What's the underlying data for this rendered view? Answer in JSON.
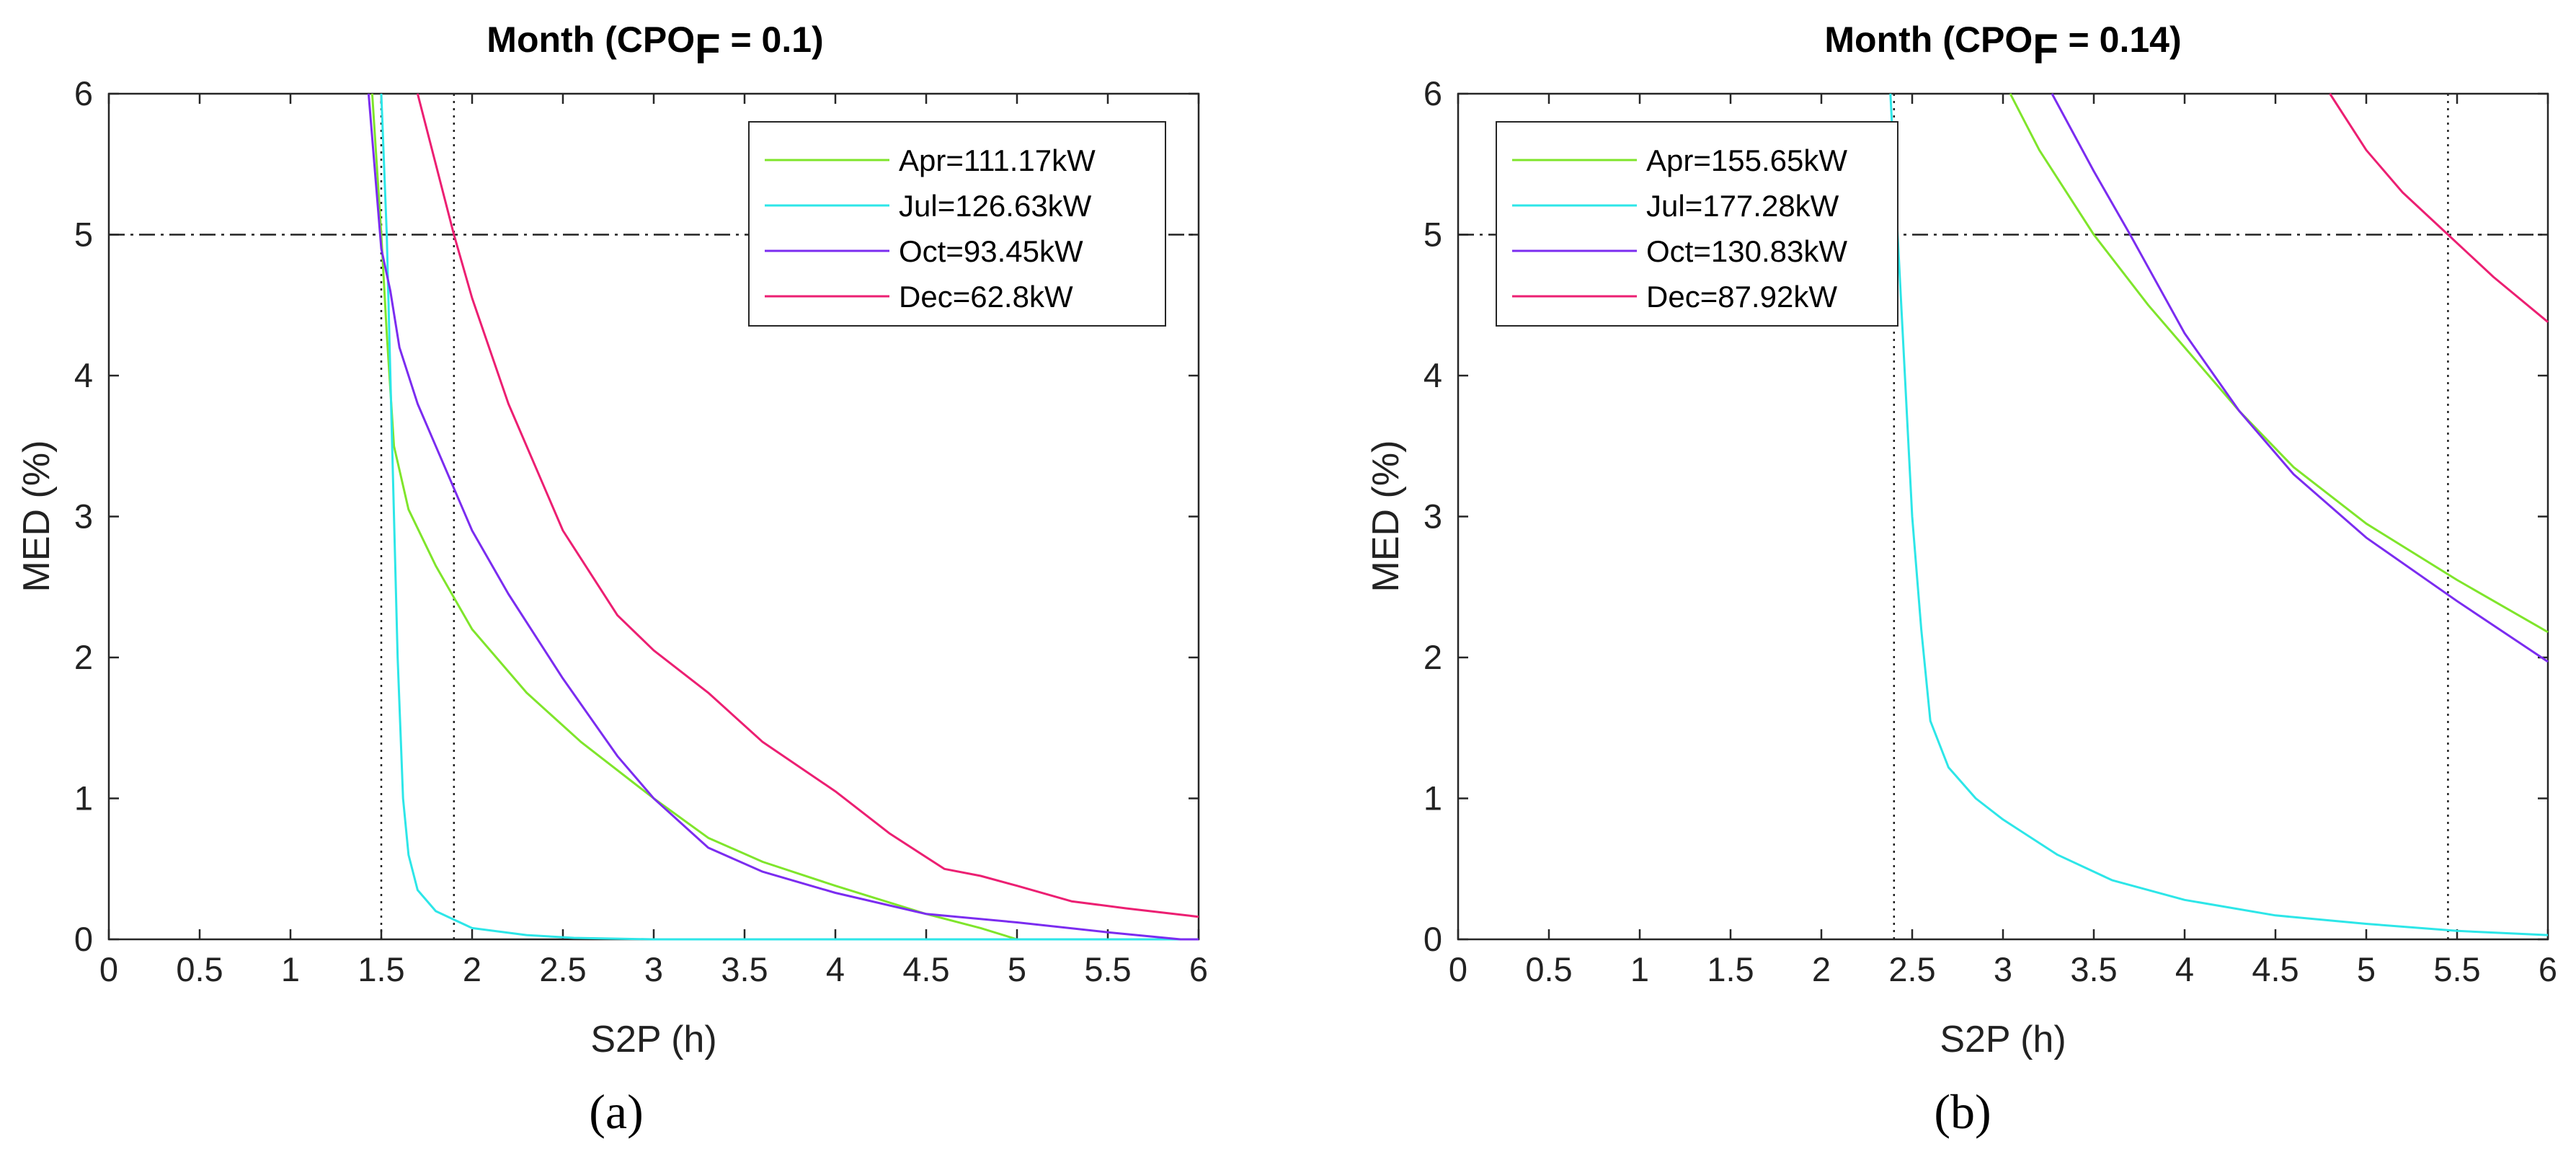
{
  "chart_data": [
    {
      "type": "line",
      "title_main": "Month (CPO",
      "title_sub": "F",
      "title_tail": " = 0.1)",
      "xlabel": "S2P (h)",
      "ylabel": "MED (%)",
      "xlim": [
        0,
        6
      ],
      "ylim": [
        0,
        6
      ],
      "xticks": [
        "0",
        "0.5",
        "1",
        "1.5",
        "2",
        "2.5",
        "3",
        "3.5",
        "4",
        "4.5",
        "5",
        "5.5",
        "6"
      ],
      "yticks": [
        "0",
        "1",
        "2",
        "3",
        "4",
        "5",
        "6"
      ],
      "hline": 5,
      "vlines": [
        1.5,
        1.9
      ],
      "caption": "(a)",
      "legend_position": "top-right",
      "series": [
        {
          "name": "Apr=111.17kW",
          "color": "#7fe52b",
          "x": [
            1.45,
            1.5,
            1.53,
            1.57,
            1.65,
            1.8,
            2.0,
            2.3,
            2.6,
            3.0,
            3.3,
            3.6,
            4.0,
            4.5,
            4.8,
            5.0
          ],
          "y": [
            6.0,
            5.0,
            4.3,
            3.5,
            3.05,
            2.65,
            2.2,
            1.75,
            1.4,
            1.0,
            0.72,
            0.55,
            0.38,
            0.18,
            0.08,
            0.0
          ]
        },
        {
          "name": "Jul=126.63kW",
          "color": "#2de6e8",
          "x": [
            1.5,
            1.53,
            1.56,
            1.59,
            1.62,
            1.65,
            1.7,
            1.8,
            2.0,
            2.3,
            2.56,
            3.0,
            4.0,
            5.0,
            6.0
          ],
          "y": [
            6.0,
            5.0,
            3.5,
            2.0,
            1.0,
            0.6,
            0.35,
            0.2,
            0.08,
            0.03,
            0.01,
            0.0,
            0.0,
            0.0,
            0.0
          ]
        },
        {
          "name": "Oct=93.45kW",
          "color": "#7b2cf0",
          "x": [
            1.43,
            1.5,
            1.55,
            1.6,
            1.7,
            1.8,
            2.0,
            2.2,
            2.5,
            2.8,
            3.0,
            3.3,
            3.6,
            4.0,
            4.5,
            5.0,
            5.5,
            5.9,
            6.0
          ],
          "y": [
            6.0,
            4.9,
            4.6,
            4.2,
            3.8,
            3.5,
            2.9,
            2.45,
            1.85,
            1.3,
            1.0,
            0.65,
            0.48,
            0.33,
            0.18,
            0.12,
            0.05,
            0.0,
            0.0
          ]
        },
        {
          "name": "Dec=62.8kW",
          "color": "#ec1f72",
          "x": [
            1.7,
            1.8,
            1.9,
            2.0,
            2.2,
            2.5,
            2.8,
            3.0,
            3.3,
            3.6,
            4.0,
            4.3,
            4.6,
            4.8,
            5.0,
            5.3,
            5.6,
            6.0
          ],
          "y": [
            6.0,
            5.5,
            5.0,
            4.55,
            3.8,
            2.9,
            2.3,
            2.05,
            1.75,
            1.4,
            1.05,
            0.75,
            0.5,
            0.45,
            0.38,
            0.27,
            0.22,
            0.16
          ]
        }
      ]
    },
    {
      "type": "line",
      "title_main": "Month (CPO",
      "title_sub": "F",
      "title_tail": " = 0.14)",
      "xlabel": "S2P (h)",
      "ylabel": "MED (%)",
      "xlim": [
        0,
        6
      ],
      "ylim": [
        0,
        6
      ],
      "xticks": [
        "0",
        "0.5",
        "1",
        "1.5",
        "2",
        "2.5",
        "3",
        "3.5",
        "4",
        "4.5",
        "5",
        "5.5",
        "6"
      ],
      "yticks": [
        "0",
        "1",
        "2",
        "3",
        "4",
        "5",
        "6"
      ],
      "hline": 5,
      "vlines": [
        2.4,
        5.45
      ],
      "caption": "(b)",
      "legend_position": "top-left",
      "series": [
        {
          "name": "Apr=155.65kW",
          "color": "#7fe52b",
          "x": [
            3.04,
            3.2,
            3.5,
            3.8,
            4.0,
            4.3,
            4.6,
            5.0,
            5.5,
            6.0
          ],
          "y": [
            6.0,
            5.6,
            5.0,
            4.5,
            4.2,
            3.75,
            3.35,
            2.95,
            2.55,
            2.18
          ]
        },
        {
          "name": "Jul=177.28kW",
          "color": "#2de6e8",
          "x": [
            2.38,
            2.42,
            2.46,
            2.5,
            2.55,
            2.6,
            2.7,
            2.85,
            3.0,
            3.3,
            3.6,
            4.0,
            4.5,
            5.0,
            5.5,
            6.0
          ],
          "y": [
            6.0,
            5.0,
            4.0,
            3.0,
            2.2,
            1.55,
            1.22,
            1.0,
            0.85,
            0.6,
            0.42,
            0.28,
            0.17,
            0.11,
            0.06,
            0.03
          ]
        },
        {
          "name": "Oct=130.83kW",
          "color": "#7b2cf0",
          "x": [
            3.27,
            3.5,
            3.7,
            4.0,
            4.3,
            4.6,
            5.0,
            5.5,
            6.0
          ],
          "y": [
            6.0,
            5.45,
            5.0,
            4.3,
            3.75,
            3.3,
            2.85,
            2.4,
            1.97
          ]
        },
        {
          "name": "Dec=87.92kW",
          "color": "#ec1f72",
          "x": [
            4.8,
            5.0,
            5.2,
            5.45,
            5.7,
            6.0
          ],
          "y": [
            6.0,
            5.6,
            5.3,
            5.0,
            4.7,
            4.38
          ]
        }
      ]
    }
  ]
}
